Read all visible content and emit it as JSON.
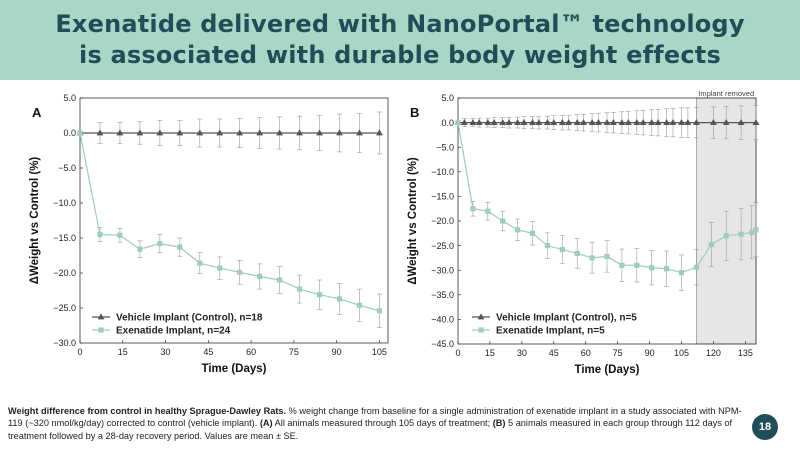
{
  "title": {
    "line1": "Exenatide delivered with NanoPortal™ technology",
    "line2": "is associated with durable body weight effects"
  },
  "chart_data": [
    {
      "panel": "A",
      "type": "line",
      "xlabel": "Time (Days)",
      "ylabel": "ΔWeight vs Control (%)",
      "xlim": [
        0,
        108
      ],
      "ylim": [
        -30,
        5
      ],
      "xticks": [
        0,
        15,
        30,
        45,
        60,
        75,
        90,
        105
      ],
      "xtick_labels": [
        "0",
        "15",
        "30",
        "45",
        "60",
        "75",
        "90",
        "105"
      ],
      "yticks": [
        5,
        0,
        -5,
        -10,
        -15,
        -20,
        -25,
        -30
      ],
      "ytick_labels": [
        "5.0",
        "0.0",
        "−5.0",
        "−10.0",
        "−15.0",
        "−20.0",
        "−25.0",
        "−30.0"
      ],
      "legend": [
        "Vehicle Implant (Control), n=18",
        "Exenatide Implant, n=24"
      ],
      "series": [
        {
          "name": "Vehicle Implant (Control)",
          "marker": "triangle",
          "color": "#555555",
          "x": [
            0,
            7,
            14,
            21,
            28,
            35,
            42,
            49,
            56,
            63,
            70,
            77,
            84,
            91,
            98,
            105
          ],
          "y": [
            0,
            0,
            0,
            0,
            0,
            0,
            0,
            0,
            0,
            0,
            0,
            0,
            0,
            0,
            0,
            0
          ],
          "err": [
            0,
            1.5,
            1.5,
            1.6,
            1.8,
            1.8,
            2.0,
            2.0,
            2.1,
            2.2,
            2.3,
            2.4,
            2.5,
            2.7,
            2.8,
            3.0
          ]
        },
        {
          "name": "Exenatide Implant",
          "marker": "square",
          "color": "#9ecdbb",
          "x": [
            0,
            7,
            14,
            21,
            28,
            35,
            42,
            49,
            56,
            63,
            70,
            77,
            84,
            91,
            98,
            105
          ],
          "y": [
            0,
            -14.5,
            -14.6,
            -16.6,
            -15.8,
            -16.3,
            -18.6,
            -19.3,
            -19.9,
            -20.5,
            -21.0,
            -22.3,
            -23.1,
            -23.7,
            -24.6,
            -25.4
          ],
          "err": [
            0,
            1.0,
            1.0,
            1.2,
            1.3,
            1.3,
            1.5,
            1.6,
            1.7,
            1.8,
            1.9,
            2.0,
            2.1,
            2.2,
            2.3,
            2.4
          ]
        }
      ]
    },
    {
      "panel": "B",
      "type": "line",
      "xlabel": "Time (Days)",
      "ylabel": "ΔWeight vs Control (%)",
      "xlim": [
        0,
        140
      ],
      "ylim": [
        -45,
        5
      ],
      "xticks": [
        0,
        15,
        30,
        45,
        60,
        75,
        90,
        105,
        120,
        135
      ],
      "xtick_labels": [
        "0",
        "15",
        "30",
        "45",
        "60",
        "75",
        "90",
        "105",
        "120",
        "135"
      ],
      "yticks": [
        5,
        0,
        -5,
        -10,
        -15,
        -20,
        -25,
        -30,
        -35,
        -40,
        -45
      ],
      "ytick_labels": [
        "5.0",
        "0.0",
        "−5.0",
        "−10.0",
        "−15.0",
        "−20.0",
        "−25.0",
        "−30.0",
        "−35.0",
        "−40.0",
        "−45.0"
      ],
      "annotation": "Implant removed",
      "shaded_region": [
        112,
        140
      ],
      "legend": [
        "Vehicle Implant (Control), n=5",
        "Exenatide Implant, n=5"
      ],
      "series": [
        {
          "name": "Vehicle Implant (Control)",
          "marker": "triangle",
          "color": "#555555",
          "x": [
            0,
            3,
            7,
            10,
            14,
            17,
            21,
            24,
            28,
            31,
            35,
            38,
            42,
            45,
            49,
            52,
            56,
            59,
            63,
            66,
            70,
            73,
            77,
            80,
            84,
            87,
            91,
            94,
            98,
            101,
            105,
            108,
            112,
            120,
            126,
            133,
            140
          ],
          "y": [
            0,
            0,
            0,
            0,
            0,
            0,
            0,
            0,
            0,
            0,
            0,
            0,
            0,
            0,
            0,
            0,
            0,
            0,
            0,
            0,
            0,
            0,
            0,
            0,
            0,
            0,
            0,
            0,
            0,
            0,
            0,
            0,
            0,
            0,
            0,
            0,
            0
          ],
          "err": [
            0,
            0.8,
            0.8,
            0.9,
            0.9,
            1.0,
            1.0,
            1.1,
            1.1,
            1.2,
            1.2,
            1.3,
            1.3,
            1.4,
            1.5,
            1.5,
            1.6,
            1.7,
            1.8,
            1.9,
            2.0,
            2.1,
            2.2,
            2.3,
            2.4,
            2.5,
            2.6,
            2.7,
            2.8,
            2.9,
            3.0,
            3.0,
            3.1,
            3.2,
            3.3,
            3.4,
            3.5
          ]
        },
        {
          "name": "Exenatide Implant",
          "marker": "square",
          "color": "#9ecdbb",
          "x": [
            0,
            7,
            14,
            21,
            28,
            35,
            42,
            49,
            56,
            63,
            70,
            77,
            84,
            91,
            98,
            105,
            112,
            119,
            126,
            133,
            138,
            140
          ],
          "y": [
            0,
            -17.5,
            -18.0,
            -20.0,
            -21.8,
            -22.5,
            -25.0,
            -25.8,
            -26.6,
            -27.5,
            -27.2,
            -29.0,
            -29.0,
            -29.5,
            -29.7,
            -30.5,
            -29.4,
            -24.8,
            -23.0,
            -22.7,
            -22.3,
            -21.8
          ],
          "err": [
            0,
            1.5,
            1.8,
            2.0,
            2.2,
            2.4,
            2.6,
            2.8,
            3.0,
            3.1,
            3.2,
            3.3,
            3.4,
            3.5,
            3.6,
            3.6,
            3.6,
            4.5,
            5.0,
            5.2,
            5.4,
            5.5
          ]
        }
      ]
    }
  ],
  "caption": {
    "bold_lead": "Weight difference from control in healthy Sprague-Dawley Rats.",
    "text1": " % weight change from baseline for a single administration of exenatide implant in a study associated with NPM-119 (~320 nmol/kg/day) corrected to control (vehicle implant). ",
    "label_a": "(A)",
    "text2": " All animals measured through 105 days of treatment; ",
    "label_b": "(B)",
    "text3": " 5 animals measured in each group through 112 days of treatment followed by a 28-day recovery period. Values are mean ± SE."
  },
  "page_number": "18"
}
